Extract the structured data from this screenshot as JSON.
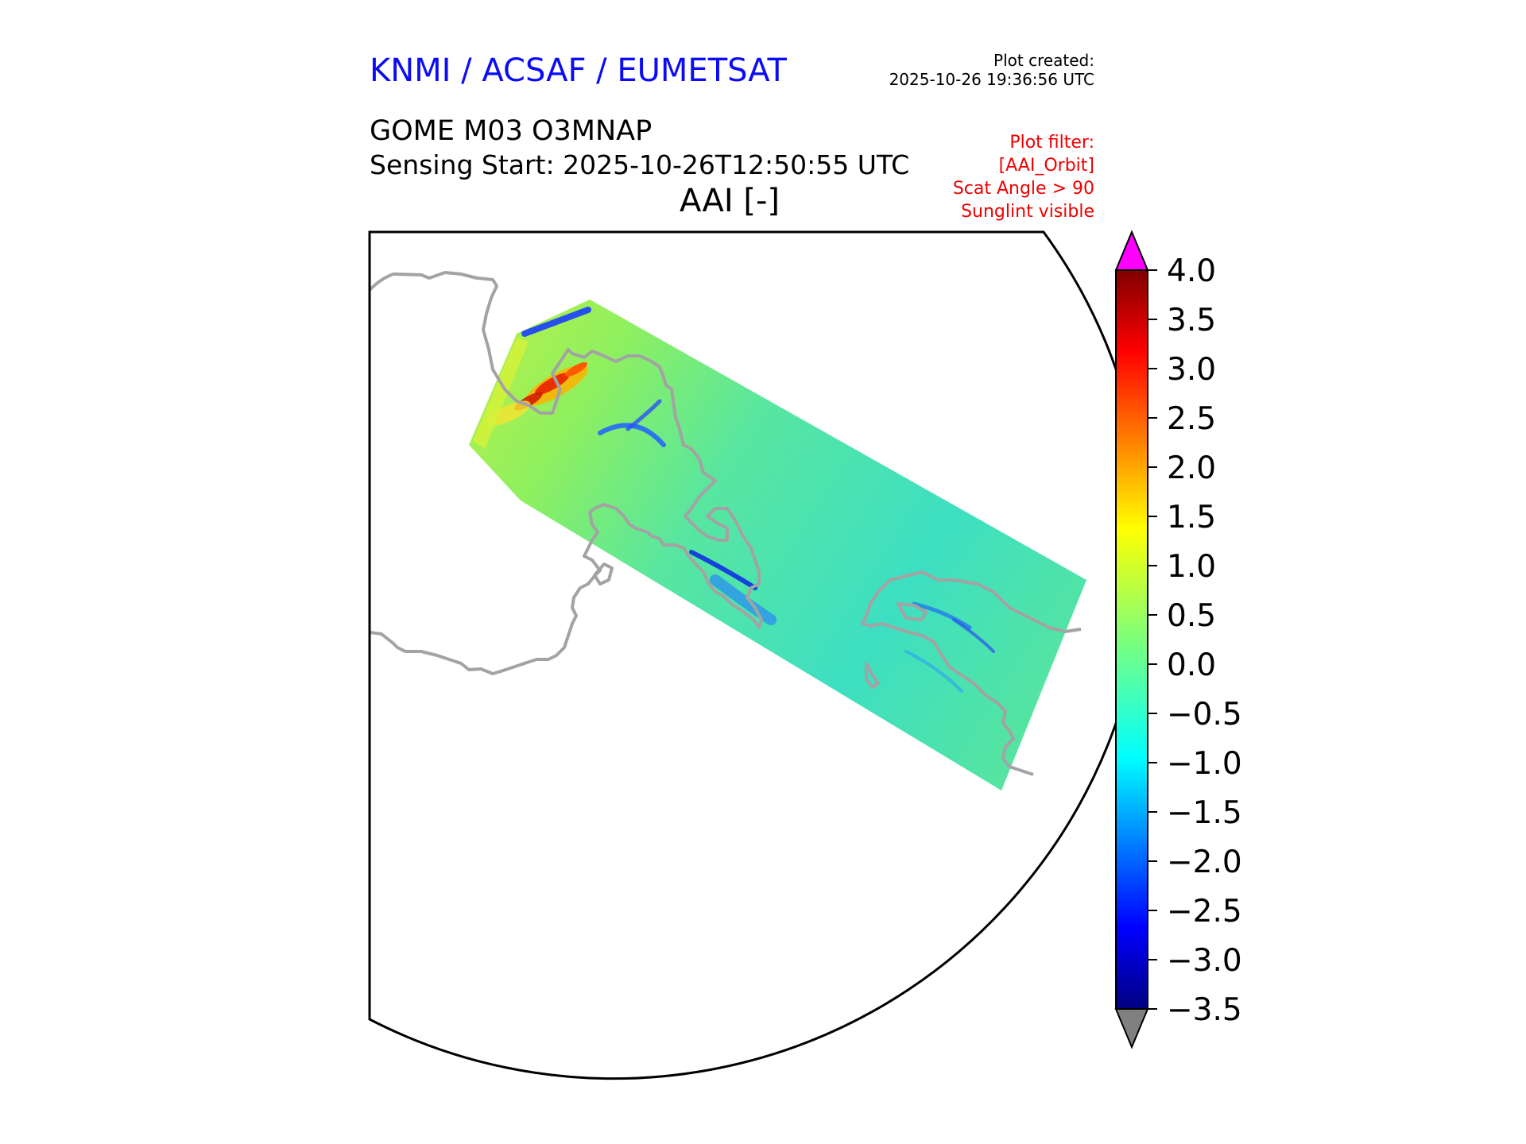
{
  "header": {
    "provider": "KNMI / ACSAF / EUMETSAT",
    "created_label": "Plot created:",
    "created_value": "2025-10-26 19:36:56 UTC",
    "product": "GOME M03 O3MNAP",
    "sensing": "Sensing Start: 2025-10-26T12:50:55 UTC",
    "quantity": "AAI [-]"
  },
  "filter_lines": [
    "Plot filter:",
    "[AAI_Orbit]",
    "Scat Angle > 90",
    "Sunglint visible"
  ],
  "colorbar": {
    "min": -3.5,
    "max": 4.0,
    "over_color": "#ff00ff",
    "under_color": "#808080",
    "tick_labels": [
      "4.0",
      "3.5",
      "3.0",
      "2.5",
      "2.0",
      "1.5",
      "1.0",
      "0.5",
      "0.0",
      "−0.5",
      "−1.0",
      "−1.5",
      "−2.0",
      "−2.5",
      "−3.0",
      "−3.5"
    ]
  },
  "colors": {
    "coastline": "#a3a3a3",
    "frame": "#000000",
    "swath_base": "#49e3a6"
  }
}
